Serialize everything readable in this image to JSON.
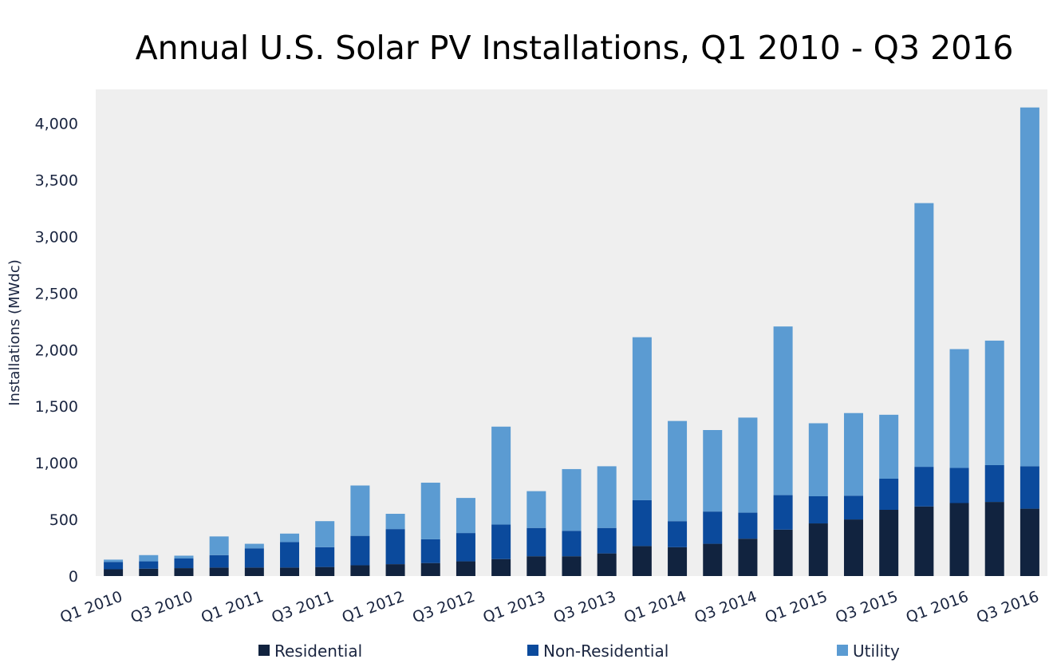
{
  "chart_data": {
    "type": "bar",
    "stacked": true,
    "title": "Annual U.S. Solar PV Installations, Q1 2010 - Q3 2016",
    "xlabel": "",
    "ylabel": "Installations (MWdc)",
    "ylim": [
      0,
      4200
    ],
    "yticks": [
      0,
      500,
      1000,
      1500,
      2000,
      2500,
      3000,
      3500,
      4000
    ],
    "ytick_labels": [
      "0",
      "500",
      "1,000",
      "1,500",
      "2,000",
      "2,500",
      "3,000",
      "3,500",
      "4,000"
    ],
    "categories": [
      "Q1 2010",
      "Q2 2010",
      "Q3 2010",
      "Q4 2010",
      "Q1 2011",
      "Q2 2011",
      "Q3 2011",
      "Q4 2011",
      "Q1 2012",
      "Q2 2012",
      "Q3 2012",
      "Q4 2012",
      "Q1 2013",
      "Q2 2013",
      "Q3 2013",
      "Q4 2013",
      "Q1 2014",
      "Q2 2014",
      "Q3 2014",
      "Q4 2014",
      "Q1 2015",
      "Q2 2015",
      "Q3 2015",
      "Q4 2015",
      "Q1 2016",
      "Q2 2016",
      "Q3 2016"
    ],
    "xtick_labels": [
      "Q1 2010",
      "Q3 2010",
      "Q1 2011",
      "Q3 2011",
      "Q1 2012",
      "Q3 2012",
      "Q1 2013",
      "Q3 2013",
      "Q1 2014",
      "Q3 2014",
      "Q1 2015",
      "Q3 2015",
      "Q1 2016",
      "Q3 2016"
    ],
    "grid": false,
    "legend_position": "bottom",
    "series": [
      {
        "name": "Residential",
        "color": "#11233f",
        "values": [
          60,
          65,
          70,
          75,
          75,
          75,
          80,
          95,
          105,
          115,
          130,
          150,
          175,
          175,
          200,
          265,
          255,
          285,
          330,
          410,
          465,
          500,
          585,
          615,
          645,
          655,
          595
        ]
      },
      {
        "name": "Non-Residential",
        "color": "#0b4a9c",
        "values": [
          65,
          65,
          85,
          110,
          170,
          225,
          175,
          260,
          310,
          210,
          250,
          305,
          250,
          225,
          225,
          405,
          230,
          285,
          230,
          305,
          240,
          210,
          275,
          350,
          310,
          325,
          375
        ]
      },
      {
        "name": "Utility",
        "color": "#5b9bd2",
        "values": [
          20,
          55,
          25,
          165,
          40,
          75,
          230,
          445,
          135,
          500,
          310,
          865,
          325,
          545,
          545,
          1440,
          885,
          720,
          840,
          1490,
          645,
          730,
          565,
          2330,
          1050,
          1100,
          3170
        ]
      }
    ]
  }
}
